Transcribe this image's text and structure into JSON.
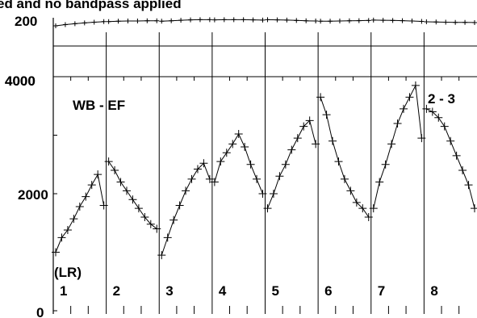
{
  "chart_data": {
    "type": "line",
    "title": "ed and no bandpass applied",
    "baseline_label": "WB - EF",
    "corner_label": "2 - 3",
    "polarization_label": "(LR)",
    "panel_labels": [
      "1",
      "2",
      "3",
      "4",
      "5",
      "6",
      "7",
      "8"
    ],
    "top_strip": {
      "ylim": [
        0,
        200
      ],
      "tick_labels": [
        "200",
        "4000"
      ],
      "series": [
        {
          "panel": 1,
          "y": [
            179.0,
            182.0,
            184.5,
            186.5,
            188.5,
            190.0
          ]
        },
        {
          "panel": 2,
          "y": [
            190.0,
            191.0,
            191.5,
            191.5,
            192.0,
            192.0
          ]
        },
        {
          "panel": 3,
          "y": [
            191.0,
            192.0,
            193.5,
            194.5,
            195.0,
            195.0
          ]
        },
        {
          "panel": 4,
          "y": [
            194.5,
            195.0,
            195.0,
            195.0,
            194.5,
            194.0
          ]
        },
        {
          "panel": 5,
          "y": [
            195.0,
            194.5,
            194.0,
            193.0,
            192.0,
            191.5
          ]
        },
        {
          "panel": 6,
          "y": [
            191.0,
            191.0,
            191.5,
            192.0,
            192.5,
            193.0
          ]
        },
        {
          "panel": 7,
          "y": [
            194.0,
            193.5,
            193.0,
            192.5,
            191.5,
            190.5
          ]
        },
        {
          "panel": 8,
          "y": [
            189.5,
            189.0,
            188.5,
            188.0,
            188.0,
            187.5
          ]
        }
      ]
    },
    "main": {
      "ylim": [
        0,
        4000
      ],
      "tick_labels": [
        "0",
        "2000",
        "4000"
      ],
      "series": [
        {
          "panel": 1,
          "y": [
            1000,
            1250,
            1380,
            1570,
            1780,
            1950,
            2150,
            2330,
            1800
          ]
        },
        {
          "panel": 2,
          "y": [
            2550,
            2400,
            2200,
            2050,
            1900,
            1750,
            1600,
            1480,
            1400
          ]
        },
        {
          "panel": 3,
          "y": [
            950,
            1250,
            1550,
            1800,
            2050,
            2250,
            2420,
            2520,
            2250
          ]
        },
        {
          "panel": 4,
          "y": [
            2200,
            2550,
            2700,
            2850,
            3020,
            2800,
            2500,
            2250,
            2000
          ]
        },
        {
          "panel": 5,
          "y": [
            1750,
            2000,
            2300,
            2500,
            2750,
            2950,
            3150,
            3250,
            2850
          ]
        },
        {
          "panel": 6,
          "y": [
            3650,
            3350,
            2900,
            2550,
            2250,
            2050,
            1850,
            1750,
            1600
          ]
        },
        {
          "panel": 7,
          "y": [
            1750,
            2200,
            2500,
            2850,
            3200,
            3450,
            3650,
            3850,
            2950
          ]
        },
        {
          "panel": 8,
          "y": [
            3450,
            3400,
            3300,
            3150,
            2900,
            2650,
            2400,
            2150,
            1750
          ]
        }
      ]
    }
  }
}
